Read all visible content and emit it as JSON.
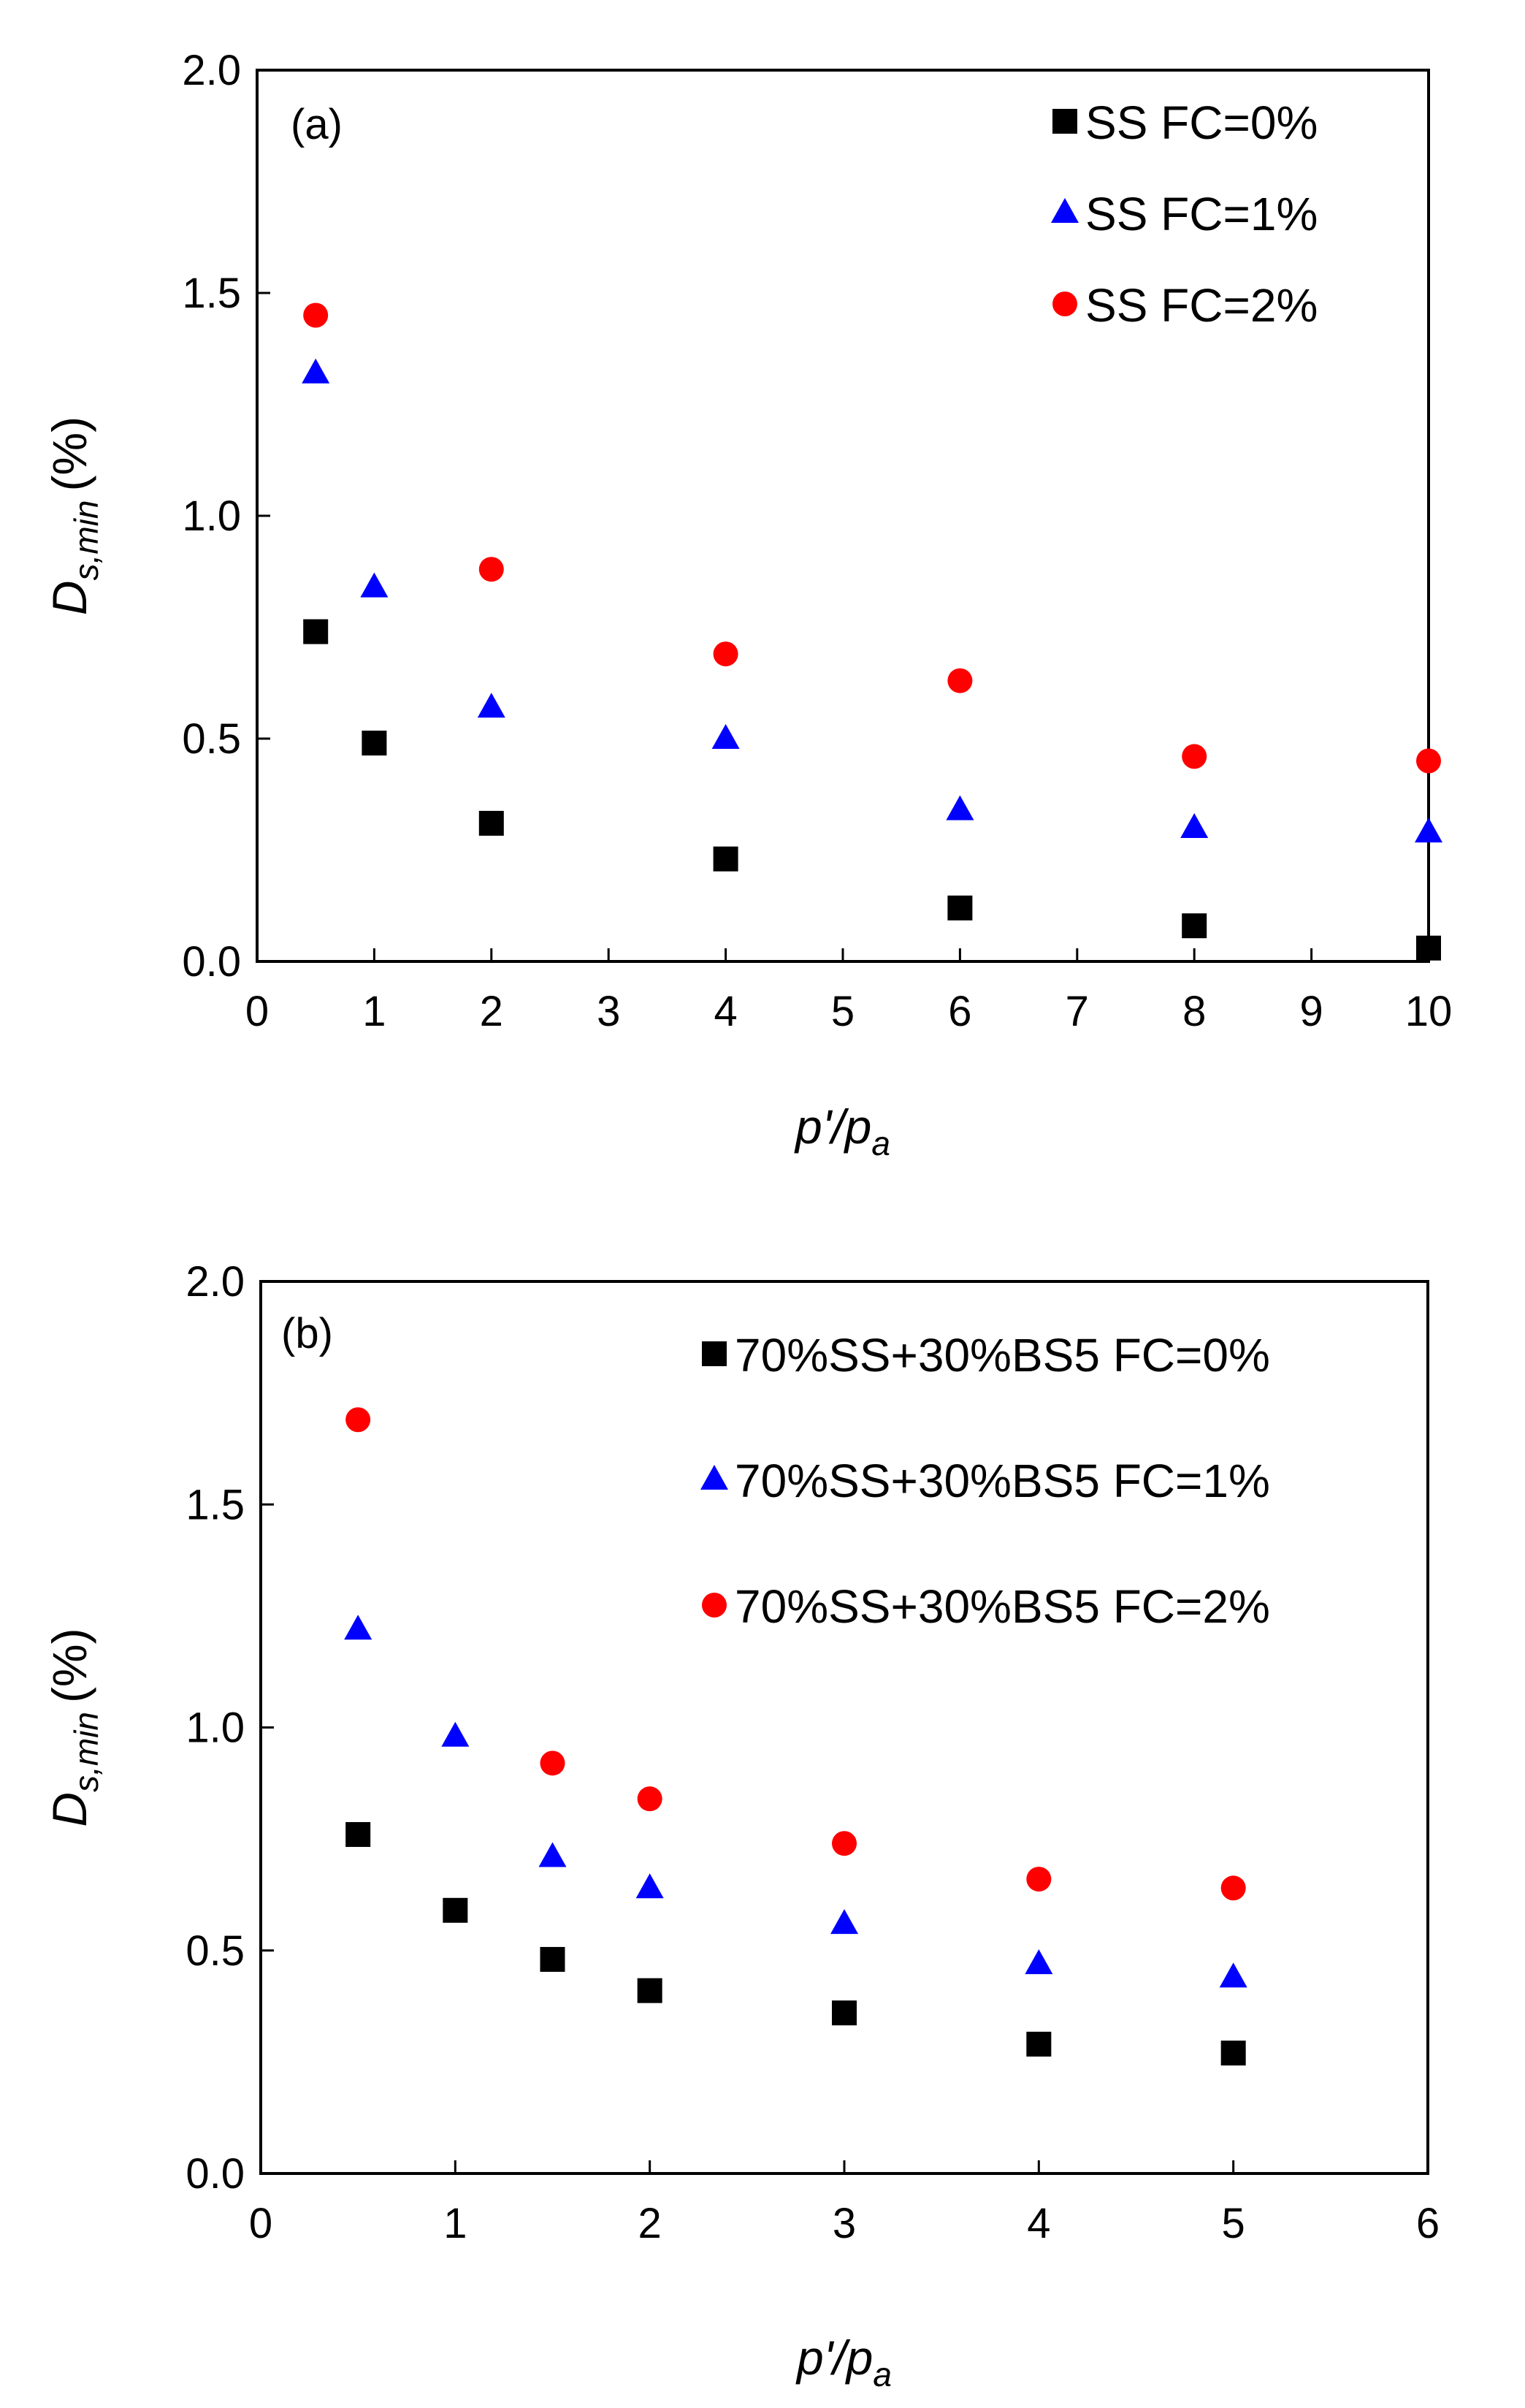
{
  "chart_data": [
    {
      "type": "scatter",
      "panel_label": "(a)",
      "xlabel_main": "p'/p",
      "xlabel_sub": "a",
      "ylabel_main": "D",
      "ylabel_sub": "s,min",
      "ylabel_unit": "(%)",
      "xlim": [
        0,
        10
      ],
      "ylim": [
        0,
        2.0
      ],
      "xticks": [
        0,
        1,
        2,
        3,
        4,
        5,
        6,
        7,
        8,
        9,
        10
      ],
      "xtick_labels": [
        "0",
        "1",
        "2",
        "3",
        "4",
        "5",
        "6",
        "7",
        "8",
        "9",
        "10"
      ],
      "yticks": [
        0,
        0.5,
        1.0,
        1.5,
        2.0
      ],
      "ytick_labels": [
        "0.0",
        "0.5",
        "1.0",
        "1.5",
        "2.0"
      ],
      "legend_position": "top-right",
      "series": [
        {
          "name": "SS FC=0%",
          "marker": "square",
          "color": "#000000",
          "x": [
            0.5,
            1,
            2,
            4,
            6,
            8,
            10
          ],
          "y": [
            0.74,
            0.49,
            0.31,
            0.23,
            0.12,
            0.08,
            0.03
          ]
        },
        {
          "name": "SS FC=1%",
          "marker": "triangle",
          "color": "#0000ff",
          "x": [
            0.5,
            1,
            2,
            4,
            6,
            8,
            10
          ],
          "y": [
            1.32,
            0.84,
            0.57,
            0.5,
            0.34,
            0.3,
            0.29
          ]
        },
        {
          "name": "SS FC=2%",
          "marker": "circle",
          "color": "#ff0000",
          "x": [
            0.5,
            2,
            4,
            6,
            8,
            10
          ],
          "y": [
            1.45,
            0.88,
            0.69,
            0.63,
            0.46,
            0.45
          ]
        }
      ]
    },
    {
      "type": "scatter",
      "panel_label": "(b)",
      "xlabel_main": "p'/p",
      "xlabel_sub": "a",
      "ylabel_main": "D",
      "ylabel_sub": "s,min",
      "ylabel_unit": "(%)",
      "xlim": [
        0,
        6
      ],
      "ylim": [
        0,
        2.0
      ],
      "xticks": [
        0,
        1,
        2,
        3,
        4,
        5,
        6
      ],
      "xtick_labels": [
        "0",
        "1",
        "2",
        "3",
        "4",
        "5",
        "6"
      ],
      "yticks": [
        0,
        0.5,
        1.0,
        1.5,
        2.0
      ],
      "ytick_labels": [
        "0.0",
        "0.5",
        "1.0",
        "1.5",
        "2.0"
      ],
      "legend_position": "top-right",
      "series": [
        {
          "name": "70%SS+30%BS5 FC=0%",
          "marker": "square",
          "color": "#000000",
          "x": [
            0.5,
            1,
            1.5,
            2,
            3,
            4,
            5
          ],
          "y": [
            0.76,
            0.59,
            0.48,
            0.41,
            0.36,
            0.29,
            0.27
          ]
        },
        {
          "name": "70%SS+30%BS5 FC=1%",
          "marker": "triangle",
          "color": "#0000ff",
          "x": [
            0.5,
            1,
            1.5,
            2,
            3,
            4,
            5
          ],
          "y": [
            1.22,
            0.98,
            0.71,
            0.64,
            0.56,
            0.47,
            0.44
          ]
        },
        {
          "name": "70%SS+30%BS5 FC=2%",
          "marker": "circle",
          "color": "#ff0000",
          "x": [
            0.5,
            1.5,
            2,
            3,
            4,
            5
          ],
          "y": [
            1.69,
            0.92,
            0.84,
            0.74,
            0.66,
            0.64
          ]
        }
      ]
    }
  ]
}
